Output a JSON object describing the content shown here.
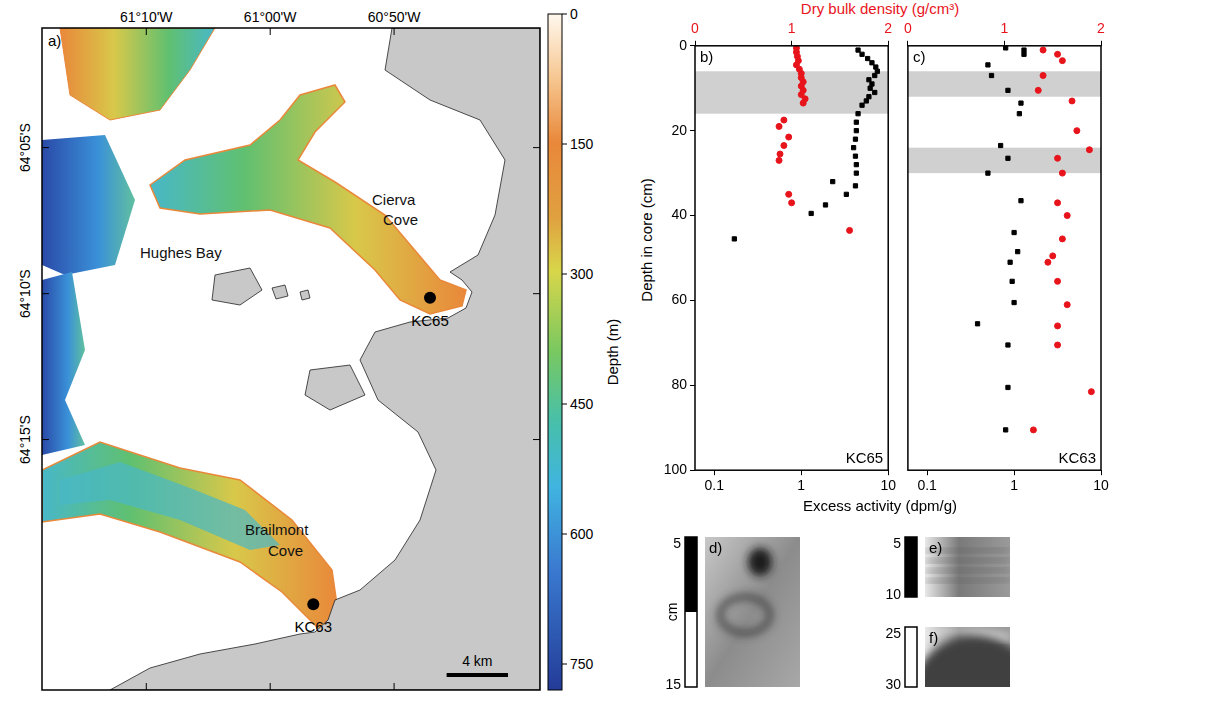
{
  "map": {
    "panel": "a)",
    "xlim": [
      -61.307,
      -60.637
    ],
    "ylim": [
      -64.393,
      -64.015
    ],
    "xticks": [
      {
        "value": -61.1667,
        "label": "61°10'W"
      },
      {
        "value": -61.0,
        "label": "61°00'W"
      },
      {
        "value": -60.8333,
        "label": "60°50'W"
      }
    ],
    "yticks": [
      {
        "value": -64.0833,
        "label": "64°05'S"
      },
      {
        "value": -64.1667,
        "label": "64°10'S"
      },
      {
        "value": -64.25,
        "label": "64°15'S"
      }
    ],
    "place_labels": [
      "Hughes Bay",
      "Cierva Cove",
      "Brailmont Cove"
    ],
    "cores": [
      {
        "label": "KC65",
        "lon": -60.785,
        "lat": -64.169
      },
      {
        "label": "KC63",
        "lon": -60.942,
        "lat": -64.344
      }
    ],
    "scale_bar": {
      "label": "4 km",
      "km": 4
    },
    "colorbar": {
      "label": "Depth (m)",
      "range": [
        0,
        780
      ],
      "ticks": [
        0,
        150,
        300,
        450,
        600,
        750
      ]
    }
  },
  "shared_axes": {
    "y": "Depth in core (cm)",
    "x": "Excess activity (dpm/g)",
    "x2": "Dry bulk density (g/cm³)"
  },
  "chart_data": [
    {
      "type": "scatter",
      "panel": "b)",
      "label": "KC65",
      "log": "x",
      "xlim": [
        0.06,
        10
      ],
      "xticks": [
        0.1,
        1,
        10
      ],
      "x2lim": [
        0,
        2
      ],
      "x2ticks": [
        0,
        1,
        2
      ],
      "ylim": [
        0,
        100
      ],
      "yticks": [
        0,
        20,
        40,
        60,
        80,
        100
      ],
      "shaded_intervals": [
        [
          6,
          16
        ]
      ],
      "series": [
        {
          "color": "#000000",
          "marker": "square",
          "axis": "x",
          "x": [
            4.5,
            5,
            5.8,
            6.5,
            7.2,
            7.5,
            7,
            6,
            6.5,
            6.2,
            7,
            6,
            5.6,
            5,
            4.5,
            4.3,
            4.3,
            4.2,
            4,
            4.2,
            4.3,
            4.3,
            2.3,
            4.2,
            3.3,
            1.9,
            1.3,
            0.17
          ],
          "y": [
            1,
            2,
            3,
            4,
            5,
            6,
            7,
            8,
            9,
            10,
            11,
            12,
            13,
            14,
            16,
            18,
            20,
            22,
            24,
            26,
            28,
            30,
            32,
            33,
            35,
            37.5,
            39.5,
            45.5
          ]
        },
        {
          "color": "#e8141c",
          "marker": "circle",
          "axis": "x2",
          "x": [
            1.05,
            1.05,
            1.06,
            1.07,
            1.05,
            1.08,
            1.1,
            1.1,
            1.12,
            1.1,
            1.12,
            1.1,
            1.14,
            1.12,
            0.92,
            0.87,
            0.97,
            0.92,
            0.88,
            0.87,
            0.97,
            1.0,
            1.6
          ],
          "y": [
            0.5,
            1.5,
            2.5,
            3.5,
            4.5,
            5.5,
            6.5,
            7.5,
            8.5,
            9.5,
            10.5,
            11.5,
            12.5,
            13.5,
            17.5,
            19,
            21.5,
            23.5,
            25.5,
            27,
            35,
            37,
            43.5
          ]
        }
      ]
    },
    {
      "type": "scatter",
      "panel": "c)",
      "label": "KC63",
      "log": "x",
      "tick_labels": "x",
      "xlim": [
        0.06,
        10
      ],
      "xticks": [
        0.1,
        1,
        10
      ],
      "x2lim": [
        0,
        2
      ],
      "x2ticks": [
        0,
        1,
        2
      ],
      "ylim": [
        0,
        100
      ],
      "yticks": [
        0,
        20,
        40,
        60,
        80,
        100
      ],
      "shaded_intervals": [
        [
          6,
          12
        ],
        [
          24,
          30
        ]
      ],
      "series": [
        {
          "color": "#000000",
          "marker": "square",
          "axis": "x",
          "x": [
            0.8,
            1.3,
            1.3,
            0.5,
            0.55,
            0.85,
            1.2,
            1.15,
            0.7,
            0.85,
            0.5,
            1.2,
            1.0,
            1.1,
            0.9,
            0.95,
            1.0,
            0.38,
            0.85,
            0.85,
            0.8
          ],
          "y": [
            0.5,
            1,
            2,
            4.5,
            7,
            10.5,
            13.5,
            16,
            23.5,
            26.5,
            30,
            36.5,
            44,
            48.5,
            51,
            55.5,
            60.5,
            65.5,
            70.5,
            80.5,
            90.5
          ]
        },
        {
          "color": "#e8141c",
          "marker": "circle",
          "axis": "x2",
          "x": [
            1.4,
            1.55,
            1.6,
            1.4,
            1.35,
            1.7,
            1.75,
            1.88,
            1.55,
            1.6,
            1.55,
            1.65,
            1.6,
            1.5,
            1.45,
            1.55,
            1.65,
            1.55,
            1.55,
            1.9,
            1.3
          ],
          "y": [
            1,
            2,
            3.5,
            7,
            10.5,
            13,
            20,
            24.5,
            26.5,
            30,
            37,
            40,
            45.5,
            49.5,
            51,
            55.5,
            61,
            66,
            70.5,
            81.5,
            90.5
          ]
        }
      ]
    }
  ],
  "radiographs": [
    {
      "panel": "d)",
      "scale": [
        5,
        15
      ],
      "unit": "cm"
    },
    {
      "panel": "e)",
      "scale": [
        5,
        10
      ]
    },
    {
      "panel": "f)",
      "scale": [
        25,
        30
      ]
    }
  ]
}
